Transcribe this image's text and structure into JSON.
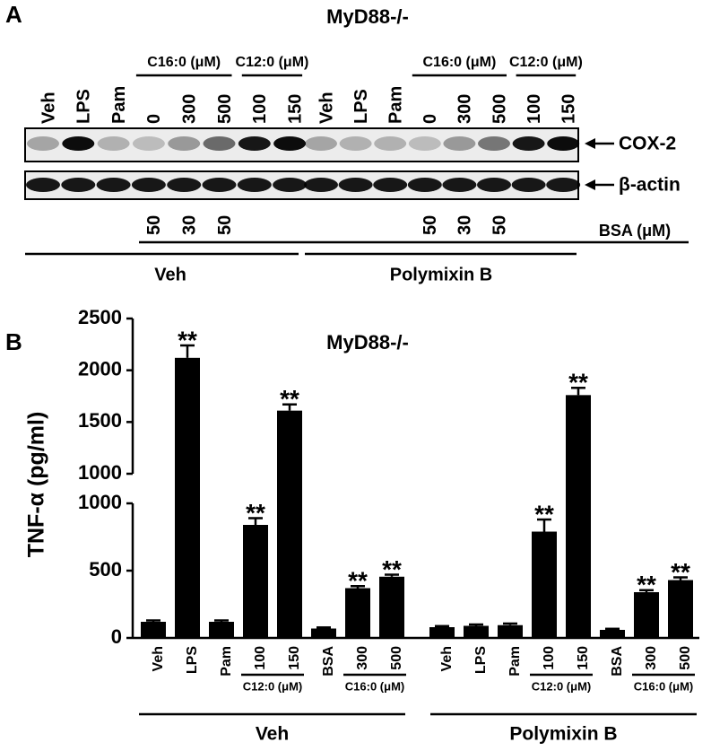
{
  "panel_a": {
    "label": "A",
    "title": "MyD88-/-",
    "lanes": [
      "Veh",
      "LPS",
      "Pam",
      "0",
      "300",
      "500",
      "100",
      "150",
      "Veh",
      "LPS",
      "Pam",
      "0",
      "300",
      "500",
      "100",
      "150"
    ],
    "headers": [
      "C16:0 (μM)",
      "C12:0 (μM)",
      "C16:0 (μM)",
      "C12:0 (μM)"
    ],
    "bands": [
      "COX-2",
      "β-actin"
    ],
    "bsa_values": [
      50,
      30,
      50,
      50,
      30,
      50
    ],
    "bsa_label": "BSA (μM)",
    "groups": [
      "Veh",
      "Polymixin B"
    ]
  },
  "panel_b_label": "B",
  "chart_data": {
    "type": "bar",
    "title": "MyD88-/-",
    "y_label": "TNF-α (pg/ml)",
    "categories": [
      "Veh",
      "LPS",
      "Pam",
      "100",
      "150",
      "BSA",
      "300",
      "500",
      "Veh",
      "LPS",
      "Pam",
      "100",
      "150",
      "BSA",
      "300",
      "500"
    ],
    "values": [
      120,
      2120,
      120,
      840,
      1610,
      70,
      370,
      455,
      80,
      90,
      95,
      790,
      1760,
      60,
      340,
      430
    ],
    "errors": [
      10,
      120,
      10,
      50,
      60,
      8,
      15,
      15,
      8,
      10,
      12,
      90,
      70,
      8,
      15,
      20
    ],
    "annotations": [
      null,
      "**",
      null,
      "**",
      "**",
      null,
      "**",
      "**",
      null,
      null,
      null,
      "**",
      "**",
      null,
      "**",
      "**"
    ],
    "color": "#000000",
    "axis_segments": [
      {
        "ylim": [
          0,
          1000
        ],
        "yticks": [
          0,
          500,
          1000
        ]
      },
      {
        "ylim": [
          1000,
          2500
        ],
        "yticks": [
          1000,
          1500,
          2000,
          2500
        ]
      }
    ],
    "bracket_labels": [
      "C12:0 (μM)",
      "C16:0 (μM)",
      "C12:0 (μM)",
      "C16:0 (μM)"
    ],
    "groups": [
      "Veh",
      "Polymixin B"
    ]
  }
}
